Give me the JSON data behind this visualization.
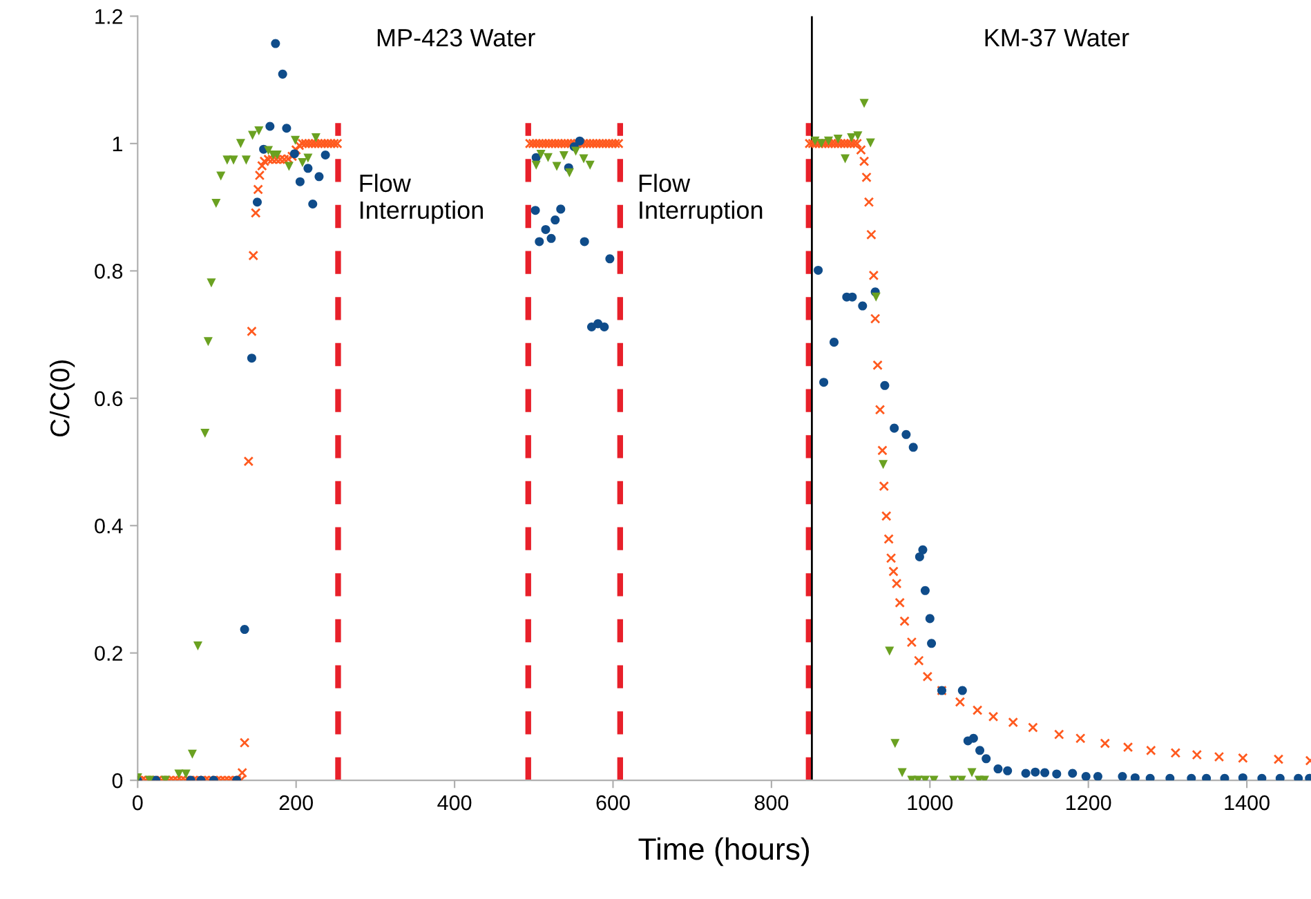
{
  "chart_data": {
    "type": "scatter",
    "xlabel": "Time (hours)",
    "ylabel": "C/C(0)",
    "xlim": [
      0,
      1481
    ],
    "ylim": [
      0,
      1.2
    ],
    "xticks": [
      0,
      200,
      400,
      600,
      800,
      1000,
      1200,
      1400
    ],
    "yticks": [
      0,
      0.2,
      0.4,
      0.6,
      0.8,
      1,
      1.2
    ],
    "grid": false,
    "legend": false,
    "series": [
      {
        "color": "#ff5a1f",
        "marker": "cross",
        "x": [
          0,
          5,
          10,
          15,
          20,
          25,
          30,
          35,
          40,
          45,
          50,
          55,
          60,
          65,
          70,
          75,
          80,
          85,
          90,
          95,
          100,
          105,
          110,
          115,
          120,
          125,
          130,
          132,
          135,
          140,
          144,
          146,
          149,
          152,
          154,
          157,
          160,
          165,
          170,
          175,
          180,
          185,
          190,
          195,
          200,
          204,
          208,
          212,
          216,
          220,
          224,
          228,
          232,
          236,
          240,
          244,
          248,
          252,
          495,
          499,
          503,
          507,
          511,
          515,
          519,
          523,
          527,
          531,
          535,
          539,
          543,
          547,
          551,
          555,
          559,
          563,
          567,
          571,
          575,
          579,
          583,
          587,
          591,
          595,
          599,
          603,
          607,
          848,
          852,
          856,
          860,
          864,
          868,
          872,
          876,
          880,
          884,
          888,
          892,
          896,
          900,
          904,
          908,
          913,
          917,
          920,
          923,
          926,
          929,
          931,
          934,
          937,
          940,
          942,
          945,
          948,
          951,
          954,
          958,
          962,
          968,
          977,
          986,
          997,
          1015,
          1038,
          1060,
          1080,
          1105,
          1130,
          1163,
          1190,
          1221,
          1250,
          1279,
          1310,
          1337,
          1365,
          1395,
          1440,
          1480
        ],
        "values": [
          0,
          0,
          0,
          0,
          0,
          0,
          0,
          0,
          0,
          0,
          0,
          0,
          0,
          0,
          0,
          0,
          0,
          0,
          0,
          0,
          0,
          0,
          0,
          0,
          0,
          0,
          0,
          0.012,
          0.059,
          0.501,
          0.705,
          0.824,
          0.891,
          0.928,
          0.95,
          0.965,
          0.972,
          0.975,
          0.975,
          0.975,
          0.975,
          0.975,
          0.976,
          0.98,
          0.99,
          0.997,
          1,
          1,
          1,
          1,
          1,
          1,
          1,
          1,
          1,
          1,
          1,
          1,
          1,
          1,
          1,
          1,
          1,
          1,
          1,
          1,
          1,
          1,
          1,
          1,
          1,
          1,
          1,
          1,
          1,
          1,
          1,
          1,
          1,
          1,
          1,
          1,
          1,
          1,
          1,
          1,
          1,
          1,
          1,
          1,
          1,
          1,
          1,
          1,
          1,
          1,
          1,
          1,
          1,
          1,
          1,
          1,
          1,
          0.99,
          0.972,
          0.947,
          0.908,
          0.857,
          0.793,
          0.725,
          0.652,
          0.582,
          0.518,
          0.462,
          0.415,
          0.379,
          0.349,
          0.328,
          0.309,
          0.279,
          0.25,
          0.217,
          0.188,
          0.163,
          0.141,
          0.123,
          0.11,
          0.1,
          0.091,
          0.083,
          0.072,
          0.066,
          0.058,
          0.052,
          0.047,
          0.043,
          0.04,
          0.037,
          0.035,
          0.033,
          0.031
        ]
      },
      {
        "color": "#0f4c8a",
        "marker": "circle",
        "x": [
          0,
          23,
          67,
          80,
          96,
          125,
          135,
          144,
          151,
          159,
          167,
          174,
          183,
          188,
          198,
          205,
          215,
          221,
          229,
          237,
          502,
          503,
          507,
          515,
          522,
          527,
          534,
          544,
          551,
          558,
          564,
          573,
          581,
          589,
          596,
          859,
          866,
          879,
          895,
          902,
          915,
          931,
          943,
          955,
          970,
          979,
          987,
          991,
          994,
          1000,
          1002,
          1015,
          1041,
          1048,
          1055,
          1063,
          1071,
          1086,
          1098,
          1121,
          1133,
          1145,
          1160,
          1180,
          1197,
          1212,
          1243,
          1259,
          1278,
          1303,
          1330,
          1349,
          1372,
          1395,
          1419,
          1442,
          1465,
          1479
        ],
        "values": [
          0,
          0,
          0,
          0,
          0,
          0,
          0.237,
          0.663,
          0.908,
          0.991,
          1.027,
          1.157,
          1.109,
          1.024,
          0.984,
          0.94,
          0.961,
          0.905,
          0.948,
          0.982,
          0.895,
          0.978,
          0.846,
          0.865,
          0.851,
          0.88,
          0.897,
          0.962,
          0.995,
          1.004,
          0.846,
          0.712,
          0.717,
          0.712,
          0.819,
          0.801,
          0.625,
          0.688,
          0.759,
          0.759,
          0.745,
          0.767,
          0.62,
          0.553,
          0.543,
          0.523,
          0.351,
          0.362,
          0.298,
          0.254,
          0.215,
          0.141,
          0.141,
          0.062,
          0.066,
          0.047,
          0.034,
          0.018,
          0.015,
          0.011,
          0.013,
          0.012,
          0.01,
          0.011,
          0.006,
          0.006,
          0.006,
          0.004,
          0.003,
          0.003,
          0.003,
          0.003,
          0.003,
          0.004,
          0.003,
          0.003,
          0.003,
          0.003
        ]
      },
      {
        "color": "#6aa121",
        "marker": "triangle",
        "x": [
          0,
          15,
          35,
          52,
          61,
          69,
          76,
          85,
          89,
          93,
          99,
          105,
          113,
          121,
          130,
          137,
          145,
          153,
          165,
          171,
          176,
          191,
          199,
          208,
          215,
          225,
          503,
          509,
          518,
          529,
          538,
          545,
          553,
          563,
          571,
          855,
          863,
          872,
          884,
          893,
          901,
          909,
          917,
          925,
          932,
          941,
          949,
          956,
          965,
          977,
          985,
          994,
          1005,
          1030,
          1040,
          1053,
          1062,
          1069
        ],
        "values": [
          0.004,
          0,
          0,
          0.01,
          0.01,
          0.041,
          0.211,
          0.545,
          0.689,
          0.781,
          0.906,
          0.949,
          0.974,
          0.974,
          1.0,
          0.974,
          1.013,
          1.02,
          0.989,
          0.982,
          0.982,
          0.964,
          1.005,
          0.97,
          0.977,
          1.009,
          0.966,
          0.983,
          0.978,
          0.964,
          0.981,
          0.954,
          0.988,
          0.976,
          0.966,
          1.004,
          1.0,
          1.004,
          1.007,
          0.976,
          1.009,
          1.012,
          1.063,
          1.001,
          0.759,
          0.496,
          0.203,
          0.058,
          0.012,
          0,
          0,
          0,
          0,
          0,
          0,
          0.012,
          0,
          0
        ]
      }
    ],
    "ref_lines": [
      {
        "axis": "x",
        "value": 253,
        "color": "#e8202a",
        "line_style": "dashed"
      },
      {
        "axis": "x",
        "value": 493,
        "color": "#e8202a",
        "line_style": "dashed"
      },
      {
        "axis": "x",
        "value": 609,
        "color": "#e8202a",
        "line_style": "dashed"
      },
      {
        "axis": "x",
        "value": 847,
        "color": "#e8202a",
        "line_style": "dashed"
      },
      {
        "axis": "x",
        "value": 851,
        "color": "#000000",
        "line_style": "solid"
      }
    ],
    "annotations": [
      "MP-423 Water",
      "KM-37 Water",
      "Flow\nInterruption",
      "Flow\nInterruption"
    ]
  }
}
